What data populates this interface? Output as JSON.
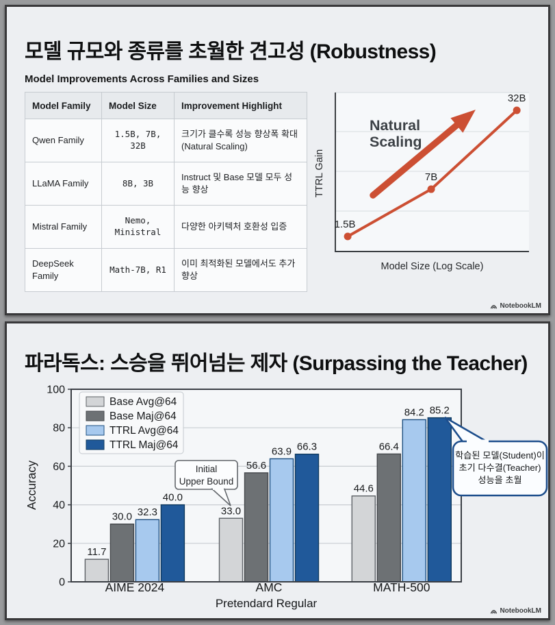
{
  "slide1": {
    "title": "모델 규모와 종류를 초월한 견고성 (Robustness)",
    "table_title": "Model Improvements Across Families and Sizes",
    "table": {
      "headers": [
        "Model Family",
        "Model Size",
        "Improvement Highlight"
      ],
      "rows": [
        [
          "Qwen Family",
          "1.5B, 7B, 32B",
          "크기가 클수록 성능 향상폭 확대 (Natural Scaling)"
        ],
        [
          "LLaMA Family",
          "8B, 3B",
          "Instruct 및 Base 모델 모두 성능 향상"
        ],
        [
          "Mistral Family",
          "Nemo, Ministral",
          "다양한 아키텍처 호환성 입증"
        ],
        [
          "DeepSeek Family",
          "Math-7B, R1",
          "이미 최적화된 모델에서도 추가 향상"
        ]
      ]
    },
    "badge": "NotebookLM"
  },
  "slide2": {
    "title": "파라독스: 스승을 뛰어넘는 제자 (Surpassing the Teacher)",
    "badge": "NotebookLM"
  },
  "chart_data": [
    {
      "type": "line",
      "title": "",
      "ylabel": "TTRL Gain",
      "xlabel": "Model Size (Log Scale)",
      "line_color": "#cc4f33",
      "text_color": "#3c4146",
      "points": [
        {
          "label": "1.5B",
          "x": 0.064,
          "y": 0.095
        },
        {
          "label": "7B",
          "x": 0.495,
          "y": 0.392
        },
        {
          "label": "32B",
          "x": 0.937,
          "y": 0.888
        }
      ],
      "annotation": {
        "text_lines": [
          "Natural",
          "Scaling"
        ],
        "arrow": true
      },
      "grid": true,
      "axis_numeric_labels": false
    },
    {
      "type": "bar",
      "title": "",
      "ylabel": "Accuracy",
      "xlabel": "Pretendard Regular",
      "ylim": [
        0,
        100
      ],
      "yticks": [
        0,
        20,
        40,
        60,
        80,
        100
      ],
      "grid": true,
      "legend_position": "top-left",
      "categories": [
        "AIME 2024",
        "AMC",
        "MATH-500"
      ],
      "series": [
        {
          "name": "Base Avg@64",
          "color": "#d3d5d7",
          "border": "#5d6166",
          "values": [
            11.7,
            33.0,
            44.6
          ]
        },
        {
          "name": "Base Maj@64",
          "color": "#6d7174",
          "border": "#44474b",
          "values": [
            30.0,
            56.6,
            66.4
          ]
        },
        {
          "name": "TTRL Avg@64",
          "color": "#a7c9ee",
          "border": "#1e4f80",
          "values": [
            32.3,
            63.9,
            84.2
          ]
        },
        {
          "name": "TTRL Maj@64",
          "color": "#20599a",
          "border": "#103a5e",
          "values": [
            40.0,
            66.3,
            85.2
          ]
        }
      ],
      "annotations": [
        {
          "type": "box-callout",
          "text_lines": [
            "Initial",
            "Upper Bound"
          ],
          "target_category": "AMC",
          "target_series": "Base Avg@64"
        },
        {
          "type": "speech-bubble",
          "color": "#1d4e8c",
          "text_lines": [
            "학습된 모델(Student)이",
            "초기 다수결(Teacher)",
            "성능을 초월"
          ],
          "target_category": "MATH-500",
          "target_series": "TTRL Maj@64"
        }
      ]
    }
  ]
}
